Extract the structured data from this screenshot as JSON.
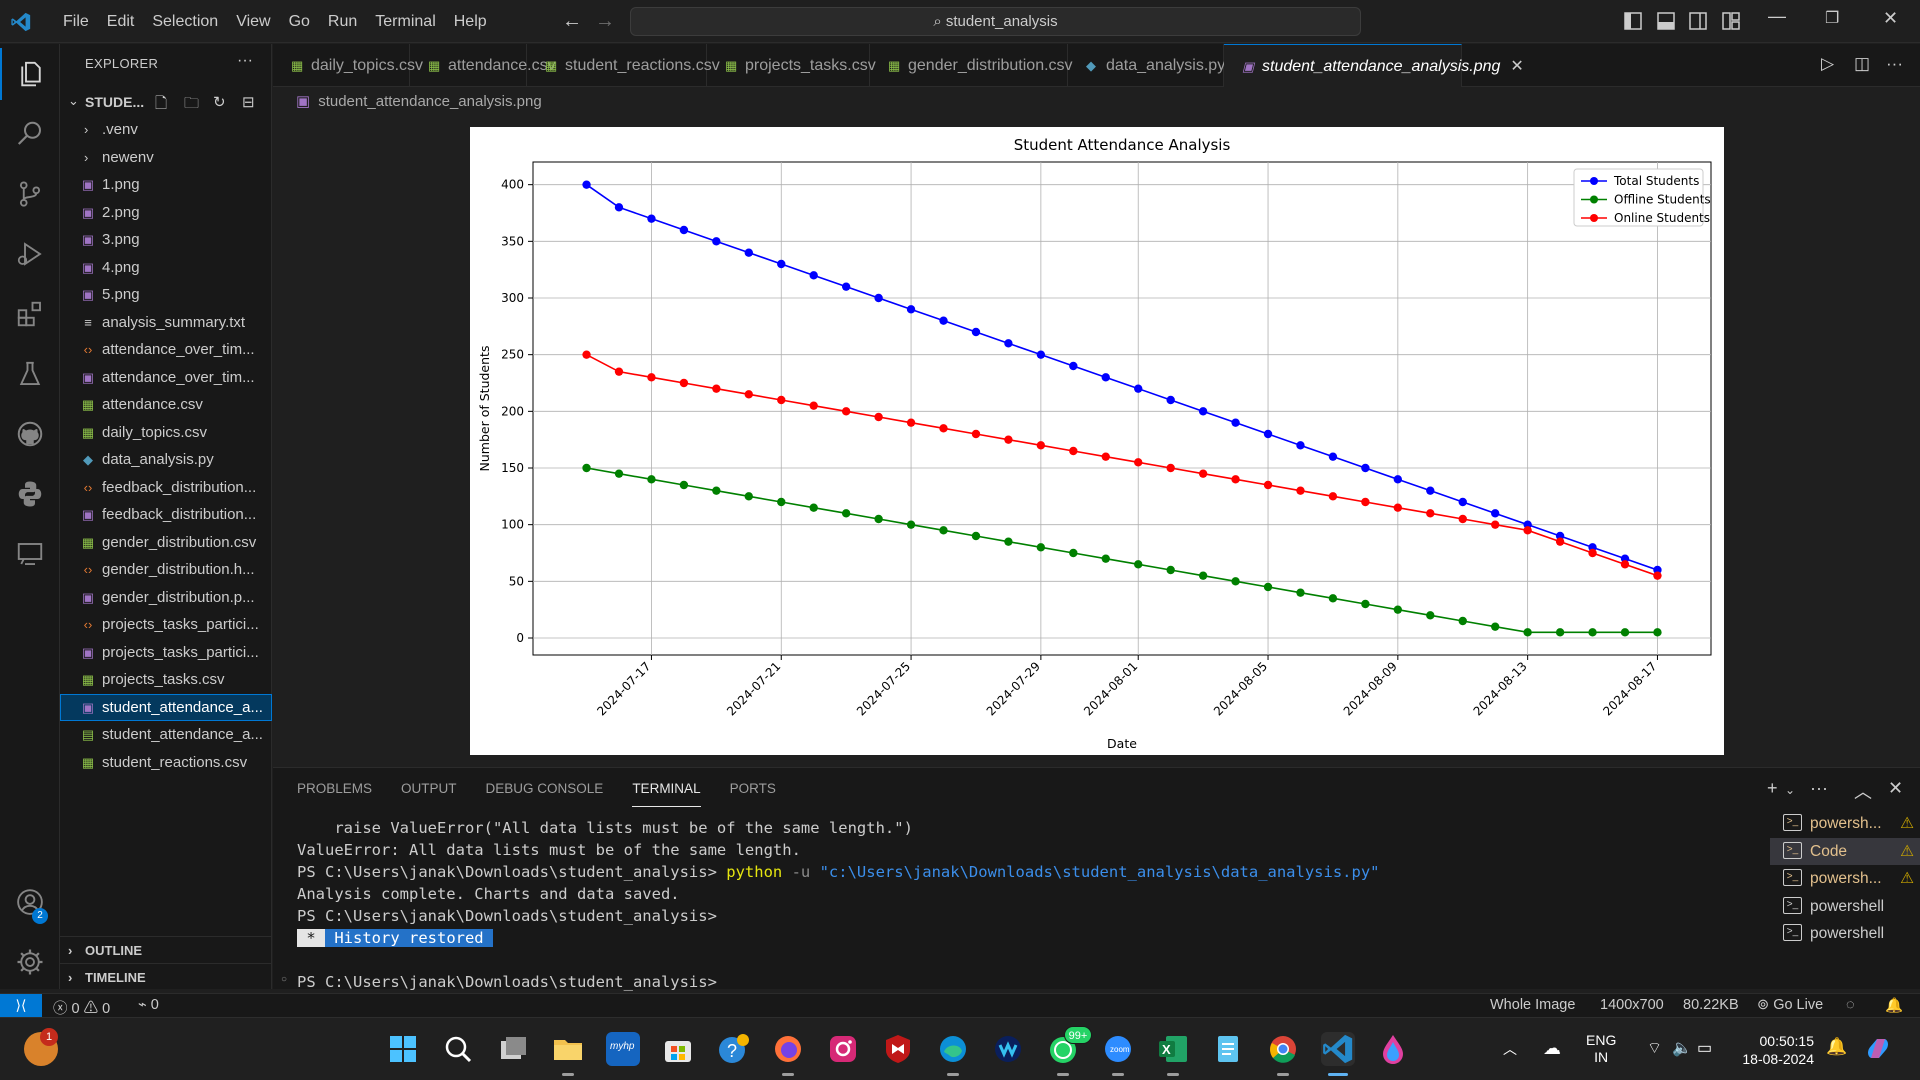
{
  "window": {
    "menu": [
      "File",
      "Edit",
      "Selection",
      "View",
      "Go",
      "Run",
      "Terminal",
      "Help"
    ],
    "command_center": "student_analysis"
  },
  "explorer": {
    "title": "EXPLORER",
    "folder": "STUDE...",
    "items": [
      {
        "name": ".venv",
        "kind": "folder"
      },
      {
        "name": "newenv",
        "kind": "folder"
      },
      {
        "name": "1.png",
        "kind": "img"
      },
      {
        "name": "2.png",
        "kind": "img"
      },
      {
        "name": "3.png",
        "kind": "img"
      },
      {
        "name": "4.png",
        "kind": "img"
      },
      {
        "name": "5.png",
        "kind": "img"
      },
      {
        "name": "analysis_summary.txt",
        "kind": "txt"
      },
      {
        "name": "attendance_over_tim...",
        "kind": "html"
      },
      {
        "name": "attendance_over_tim...",
        "kind": "img"
      },
      {
        "name": "attendance.csv",
        "kind": "csv"
      },
      {
        "name": "daily_topics.csv",
        "kind": "csv"
      },
      {
        "name": "data_analysis.py",
        "kind": "py"
      },
      {
        "name": "feedback_distribution...",
        "kind": "html"
      },
      {
        "name": "feedback_distribution...",
        "kind": "img"
      },
      {
        "name": "gender_distribution.csv",
        "kind": "csv"
      },
      {
        "name": "gender_distribution.h...",
        "kind": "html"
      },
      {
        "name": "gender_distribution.p...",
        "kind": "img"
      },
      {
        "name": "projects_tasks_partici...",
        "kind": "html"
      },
      {
        "name": "projects_tasks_partici...",
        "kind": "img"
      },
      {
        "name": "projects_tasks.csv",
        "kind": "csv"
      },
      {
        "name": "student_attendance_a...",
        "kind": "img",
        "selected": true
      },
      {
        "name": "student_attendance_a...",
        "kind": "xls"
      },
      {
        "name": "student_reactions.csv",
        "kind": "csv"
      }
    ],
    "outline": "OUTLINE",
    "timeline": "TIMELINE"
  },
  "tabs": [
    {
      "label": "daily_topics.csv",
      "kind": "csv"
    },
    {
      "label": "attendance.csv",
      "kind": "csv"
    },
    {
      "label": "student_reactions.csv",
      "kind": "csv"
    },
    {
      "label": "projects_tasks.csv",
      "kind": "csv"
    },
    {
      "label": "gender_distribution.csv",
      "kind": "csv"
    },
    {
      "label": "data_analysis.py",
      "kind": "py"
    },
    {
      "label": "student_attendance_analysis.png",
      "kind": "img",
      "active": true
    }
  ],
  "breadcrumb": "student_attendance_analysis.png",
  "chart_data": {
    "type": "line",
    "title": "Student Attendance Analysis",
    "xlabel": "Date",
    "ylabel": "Number of Students",
    "x": [
      "2024-07-15",
      "2024-07-16",
      "2024-07-17",
      "2024-07-18",
      "2024-07-19",
      "2024-07-20",
      "2024-07-21",
      "2024-07-22",
      "2024-07-23",
      "2024-07-24",
      "2024-07-25",
      "2024-07-26",
      "2024-07-27",
      "2024-07-28",
      "2024-07-29",
      "2024-07-30",
      "2024-07-31",
      "2024-08-01",
      "2024-08-02",
      "2024-08-03",
      "2024-08-04",
      "2024-08-05",
      "2024-08-06",
      "2024-08-07",
      "2024-08-08",
      "2024-08-09",
      "2024-08-10",
      "2024-08-11",
      "2024-08-12",
      "2024-08-13",
      "2024-08-14",
      "2024-08-15",
      "2024-08-16",
      "2024-08-17"
    ],
    "x_ticks": [
      "2024-07-17",
      "2024-07-21",
      "2024-07-25",
      "2024-07-29",
      "2024-08-01",
      "2024-08-05",
      "2024-08-09",
      "2024-08-13",
      "2024-08-17"
    ],
    "y_ticks": [
      0,
      50,
      100,
      150,
      200,
      250,
      300,
      350,
      400
    ],
    "ylim": [
      -15,
      420
    ],
    "grid": true,
    "legend_position": "top-right",
    "series": [
      {
        "name": "Total Students",
        "color": "#0000ff",
        "values": [
          400,
          380,
          370,
          360,
          350,
          340,
          330,
          320,
          310,
          300,
          290,
          280,
          270,
          260,
          250,
          240,
          230,
          220,
          210,
          200,
          190,
          180,
          170,
          160,
          150,
          140,
          130,
          120,
          110,
          100,
          90,
          80,
          70,
          60
        ]
      },
      {
        "name": "Offline Students",
        "color": "#008000",
        "values": [
          150,
          145,
          140,
          135,
          130,
          125,
          120,
          115,
          110,
          105,
          100,
          95,
          90,
          85,
          80,
          75,
          70,
          65,
          60,
          55,
          50,
          45,
          40,
          35,
          30,
          25,
          20,
          15,
          10,
          5,
          5,
          5,
          5,
          5
        ]
      },
      {
        "name": "Online Students",
        "color": "#ff0000",
        "values": [
          250,
          235,
          230,
          225,
          220,
          215,
          210,
          205,
          200,
          195,
          190,
          185,
          180,
          175,
          170,
          165,
          160,
          155,
          150,
          145,
          140,
          135,
          130,
          125,
          120,
          115,
          110,
          105,
          100,
          95,
          85,
          75,
          65,
          55
        ]
      }
    ]
  },
  "panel": {
    "tabs": [
      "PROBLEMS",
      "OUTPUT",
      "DEBUG CONSOLE",
      "TERMINAL",
      "PORTS"
    ],
    "active_tab": "TERMINAL",
    "terminal": {
      "line1": "    raise ValueError(\"All data lists must be of the same length.\")",
      "line2": "ValueError: All data lists must be of the same length.",
      "line3_prompt": "PS C:\\Users\\janak\\Downloads\\student_analysis> ",
      "line3_cmd": "python",
      "line3_flag": " -u ",
      "line3_arg": "\"c:\\Users\\janak\\Downloads\\student_analysis\\data_analysis.py\"",
      "line4": "Analysis complete. Charts and data saved.",
      "line5": "PS C:\\Users\\janak\\Downloads\\student_analysis>",
      "history_star": " * ",
      "history_text": " History restored ",
      "line7": "PS C:\\Users\\janak\\Downloads\\student_analysis> "
    },
    "terminals": [
      {
        "label": "powersh...",
        "warn": true
      },
      {
        "label": "Code",
        "warn": true,
        "selected": true
      },
      {
        "label": "powersh...",
        "warn": true
      },
      {
        "label": "powershell",
        "warn": false
      },
      {
        "label": "powershell",
        "warn": false
      }
    ]
  },
  "statusbar": {
    "errors": "0",
    "warnings": "0",
    "ports": "0",
    "image_mode": "Whole Image",
    "dimensions": "1400x700",
    "size": "80.22KB",
    "go_live": "Go Live"
  },
  "taskbar": {
    "notification_badge": "1",
    "whatsapp_badge": "99+",
    "lang_line1": "ENG",
    "lang_line2": "IN",
    "time": "00:50:15",
    "date": "18-08-2024"
  }
}
